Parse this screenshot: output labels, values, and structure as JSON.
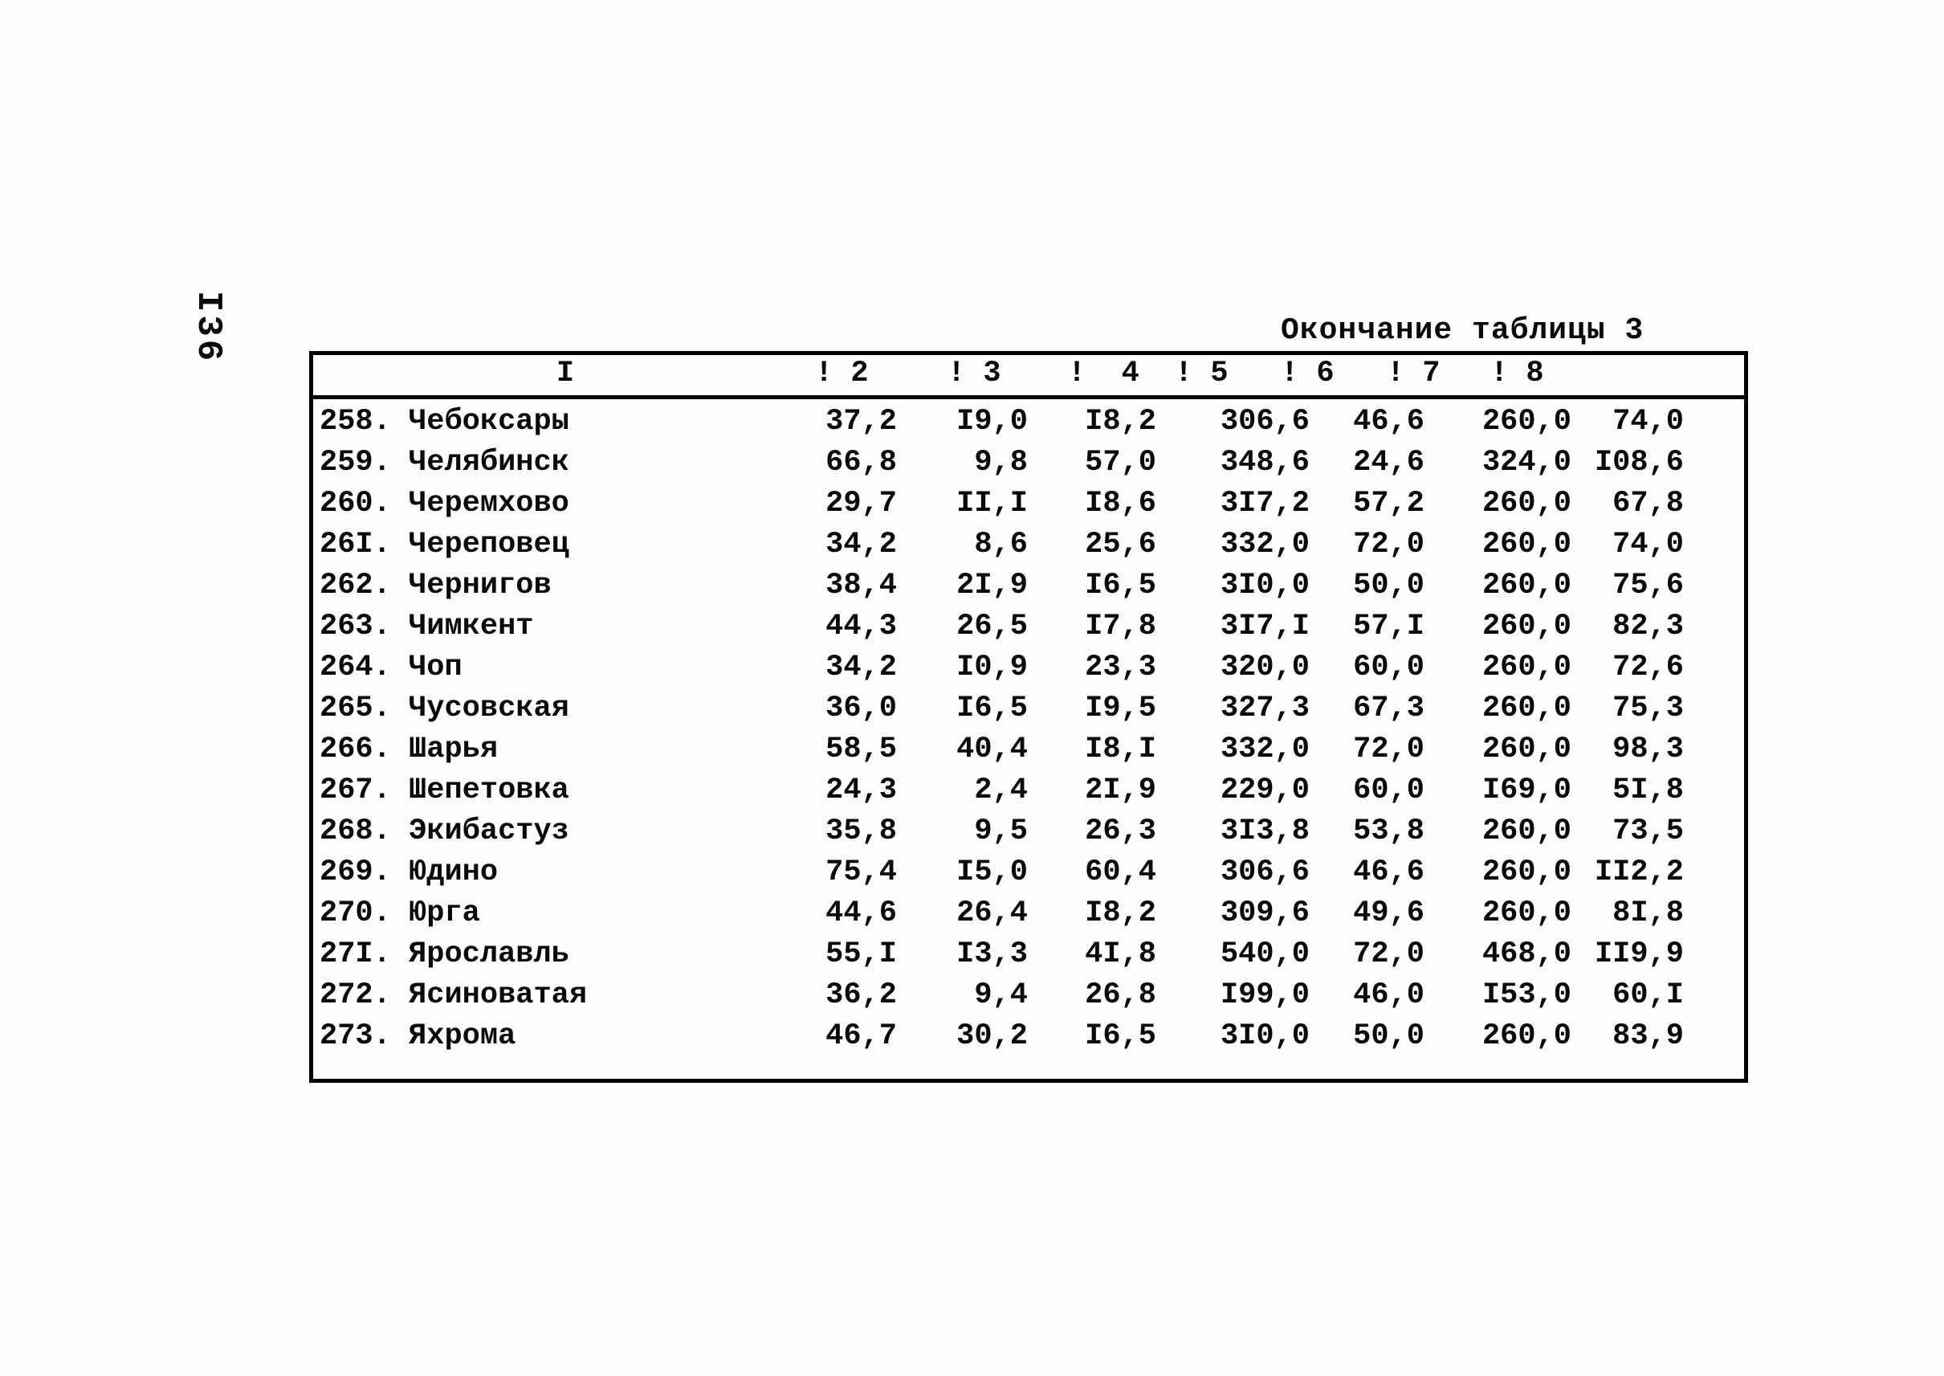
{
  "page": {
    "page_number": "I36"
  },
  "title": "Окончание таблицы 3",
  "table": {
    "header": {
      "name_col": "I",
      "value_cols": [
        "! 2",
        "! 3",
        "!  4",
        "! 5",
        "! 6",
        "! 7",
        "! 8"
      ]
    },
    "rows": [
      {
        "num": "258.",
        "name": "Чебоксары",
        "values": [
          "37,2",
          "I9,0",
          "I8,2",
          "306,6",
          "46,6",
          "260,0",
          "74,0"
        ]
      },
      {
        "num": "259.",
        "name": "Челябинск",
        "values": [
          "66,8",
          "9,8",
          "57,0",
          "348,6",
          "24,6",
          "324,0",
          "I08,6"
        ]
      },
      {
        "num": "260.",
        "name": "Черемхово",
        "values": [
          "29,7",
          "II,I",
          "I8,6",
          "3I7,2",
          "57,2",
          "260,0",
          "67,8"
        ]
      },
      {
        "num": "26I.",
        "name": "Череповец",
        "values": [
          "34,2",
          "8,6",
          "25,6",
          "332,0",
          "72,0",
          "260,0",
          "74,0"
        ]
      },
      {
        "num": "262.",
        "name": "Чернигов",
        "values": [
          "38,4",
          "2I,9",
          "I6,5",
          "3I0,0",
          "50,0",
          "260,0",
          "75,6"
        ]
      },
      {
        "num": "263.",
        "name": "Чимкент",
        "values": [
          "44,3",
          "26,5",
          "I7,8",
          "3I7,I",
          "57,I",
          "260,0",
          "82,3"
        ]
      },
      {
        "num": "264.",
        "name": "Чоп",
        "values": [
          "34,2",
          "I0,9",
          "23,3",
          "320,0",
          "60,0",
          "260,0",
          "72,6"
        ]
      },
      {
        "num": "265.",
        "name": "Чусовская",
        "values": [
          "36,0",
          "I6,5",
          "I9,5",
          "327,3",
          "67,3",
          "260,0",
          "75,3"
        ]
      },
      {
        "num": "266.",
        "name": "Шарья",
        "values": [
          "58,5",
          "40,4",
          "I8,I",
          "332,0",
          "72,0",
          "260,0",
          "98,3"
        ]
      },
      {
        "num": "267.",
        "name": "Шепетовка",
        "values": [
          "24,3",
          "2,4",
          "2I,9",
          "229,0",
          "60,0",
          "I69,0",
          "5I,8"
        ]
      },
      {
        "num": "268.",
        "name": "Экибастуз",
        "values": [
          "35,8",
          "9,5",
          "26,3",
          "3I3,8",
          "53,8",
          "260,0",
          "73,5"
        ]
      },
      {
        "num": "269.",
        "name": "Юдино",
        "values": [
          "75,4",
          "I5,0",
          "60,4",
          "306,6",
          "46,6",
          "260,0",
          "II2,2"
        ]
      },
      {
        "num": "270.",
        "name": "Юрга",
        "values": [
          "44,6",
          "26,4",
          "I8,2",
          "309,6",
          "49,6",
          "260,0",
          "8I,8"
        ]
      },
      {
        "num": "27I.",
        "name": "Ярославль",
        "values": [
          "55,I",
          "I3,3",
          "4I,8",
          "540,0",
          "72,0",
          "468,0",
          "II9,9"
        ]
      },
      {
        "num": "272.",
        "name": "Ясиноватая",
        "values": [
          "36,2",
          "9,4",
          "26,8",
          "I99,0",
          "46,0",
          "I53,0",
          "60,I"
        ]
      },
      {
        "num": "273.",
        "name": "Яхрома",
        "values": [
          "46,7",
          "30,2",
          "I6,5",
          "3I0,0",
          "50,0",
          "260,0",
          "83,9"
        ]
      }
    ]
  }
}
